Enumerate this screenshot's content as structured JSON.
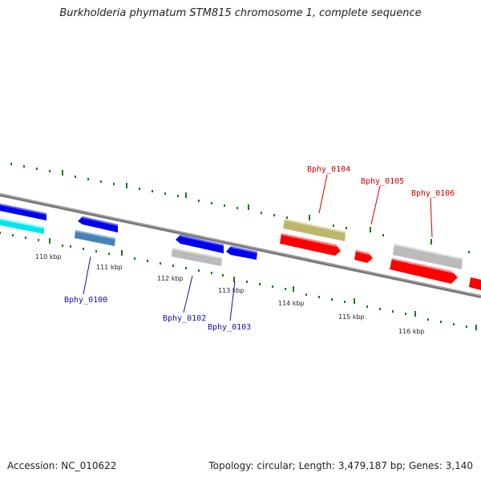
{
  "title": "Burkholderia phymatum STM815 chromosome 1, complete sequence",
  "accession": "Accession: NC_010622",
  "summary": "Topology: circular; Length: 3,479,187 bp; Genes: 3,140",
  "kbp_ticks": [
    "110 kbp",
    "111 kbp",
    "112 kbp",
    "113 kbp",
    "114 kbp",
    "115 kbp",
    "116 kbp"
  ],
  "gene_labels_forward": [
    "Bphy_0104",
    "Bphy_0105",
    "Bphy_0106"
  ],
  "gene_labels_reverse": [
    "Bphy_0100",
    "Bphy_0102",
    "Bphy_0103"
  ],
  "colors": {
    "forward_label": "#cc0000",
    "reverse_label": "#1010aa",
    "backbone": "#888888",
    "ticks": "#1a7a1a",
    "red_gene": "#ff0000",
    "blue_gene": "#0000ee",
    "cyan_gene": "#00e5ee",
    "steel_gene": "#4682b4",
    "grey_gene": "#bbbbbb",
    "khaki_gene": "#bdb76b"
  }
}
